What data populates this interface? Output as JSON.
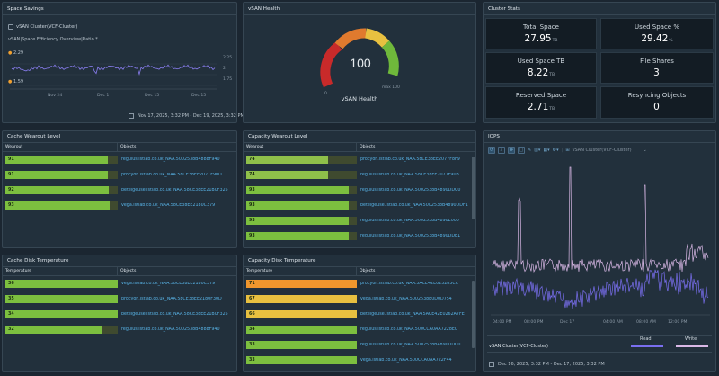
{
  "space_savings": {
    "title": "Space Savings",
    "entity": "vSAN Cluster(VCF-Cluster)",
    "metric": "vSAN|Space Efficiency Overview|Ratio *",
    "max_label": "2.29",
    "min_label": "1.59",
    "y_ticks": [
      "2.25",
      "2",
      "1.75"
    ],
    "x_ticks": [
      "Nov 24",
      "Dec 1",
      "Dec 15",
      "Dec 15"
    ],
    "date_range": "Nov 17, 2025, 3:32 PM - Dec 19, 2025, 3:32 PM",
    "series_color": "#8a7ef0"
  },
  "vsan_health": {
    "title": "vSAN Health",
    "value": "100",
    "min_label": "0",
    "max_label": "max 100",
    "label": "vSAN Health"
  },
  "cluster_stats": {
    "title": "Cluster Stats",
    "items": [
      {
        "label": "Total Space",
        "value": "27.95",
        "unit": "TB"
      },
      {
        "label": "Used Space %",
        "value": "29.42",
        "unit": "%"
      },
      {
        "label": "Used Space TB",
        "value": "8.22",
        "unit": "TB"
      },
      {
        "label": "File Shares",
        "value": "3",
        "unit": ""
      },
      {
        "label": "Reserved Space",
        "value": "2.71",
        "unit": "TB"
      },
      {
        "label": "Resyncing Objects",
        "value": "0",
        "unit": ""
      }
    ]
  },
  "cache_wearout": {
    "title": "Cache Wearout Level",
    "col1": "Wearout",
    "col2": "Objects",
    "rows": [
      {
        "value": "91",
        "pct": 91,
        "color": "#7cbf3f",
        "object": "regulus.istlab.co.uk_NAA.5002538B4888F940"
      },
      {
        "value": "91",
        "pct": 91,
        "color": "#7cbf3f",
        "object": "procyon.istlab.co.uk_NAA.58CE38EE2071F90D"
      },
      {
        "value": "92",
        "pct": 92,
        "color": "#7cbf3f",
        "object": "betelgeuse.istlab.co.uk_NAA.58CE38EE21B0F325"
      },
      {
        "value": "93",
        "pct": 93,
        "color": "#7cbf3f",
        "object": "vega.istlab.co.uk_NAA.58CE38EE2180C379"
      }
    ]
  },
  "capacity_wearout": {
    "title": "Capacity Wearout Level",
    "col1": "Wearout",
    "col2": "Objects",
    "rows": [
      {
        "value": "74",
        "pct": 74,
        "color": "#8fc04a",
        "object": "procyon.istlab.co.uk_NAA.58CE38EE2077F8F9"
      },
      {
        "value": "74",
        "pct": 74,
        "color": "#8fc04a",
        "object": "regulus.istlab.co.uk_NAA.58CE38EE2071F90B"
      },
      {
        "value": "93",
        "pct": 93,
        "color": "#7cbf3f",
        "object": "regulus.istlab.co.uk_NAA.5002538B4890DDC0"
      },
      {
        "value": "93",
        "pct": 93,
        "color": "#7cbf3f",
        "object": "betelgeuse.istlab.co.uk_NAA.5002538B4890DDF1"
      },
      {
        "value": "93",
        "pct": 93,
        "color": "#7cbf3f",
        "object": "regulus.istlab.co.uk_NAA.5002538B4890E000"
      },
      {
        "value": "93",
        "pct": 93,
        "color": "#7cbf3f",
        "object": "regulus.istlab.co.uk_NAA.5002538B4890DDE1"
      }
    ]
  },
  "cache_temp": {
    "title": "Cache Disk Temperature",
    "col1": "Temperature",
    "col2": "Objects",
    "rows": [
      {
        "value": "36",
        "pct": 100,
        "color": "#7cbf3f",
        "object": "vega.istlab.co.uk_NAA.58CE38EE2180C379"
      },
      {
        "value": "35",
        "pct": 100,
        "color": "#7cbf3f",
        "object": "procyon.istlab.co.uk_NAA.58CE38EE2180F30D"
      },
      {
        "value": "34",
        "pct": 100,
        "color": "#7cbf3f",
        "object": "betelgeuse.istlab.co.uk_NAA.58CE38EE21B0F325"
      },
      {
        "value": "32",
        "pct": 86,
        "color": "#7cbf3f",
        "object": "regulus.istlab.co.uk_NAA.5002538B4888F940"
      }
    ]
  },
  "capacity_temp": {
    "title": "Capacity Disk Temperature",
    "col1": "Temperature",
    "col2": "Objects",
    "rows": [
      {
        "value": "71",
        "pct": 100,
        "color": "#f0962d",
        "object": "procyon.istlab.co.uk_NAA.5ACE42E025285CC"
      },
      {
        "value": "67",
        "pct": 100,
        "color": "#e8c040",
        "object": "vega.istlab.co.uk_NAA.5002538E0D0D754"
      },
      {
        "value": "66",
        "pct": 100,
        "color": "#e8c040",
        "object": "betelgeuse.istlab.co.uk_NAA.5ACE42E0262A7FE"
      },
      {
        "value": "34",
        "pct": 100,
        "color": "#7cbf3f",
        "object": "regulus.istlab.co.uk_NAA.500CCA0AA7228E0"
      },
      {
        "value": "33",
        "pct": 100,
        "color": "#7cbf3f",
        "object": "regulus.istlab.co.uk_NAA.5002538B4890DDC0"
      },
      {
        "value": "33",
        "pct": 100,
        "color": "#7cbf3f",
        "object": "vega.istlab.co.uk_NAA.500CCA0AA722F44"
      }
    ]
  },
  "iops": {
    "title": "IOPS",
    "entity": "vSAN Cluster(VCF-Cluster)",
    "x_ticks": [
      "04:00 PM",
      "08:00 PM",
      "Dec 17",
      "04:00 AM",
      "08:00 AM",
      "12:00 PM"
    ],
    "legend_entity": "vSAN Cluster(VCF-Cluster)",
    "legend_read": "Read",
    "legend_write": "Write",
    "read_color": "#7a6ff0",
    "write_color": "#d9b8e6",
    "date_range": "Dec 16, 2025, 3:32 PM - Dec 17, 2025, 3:32 PM"
  }
}
